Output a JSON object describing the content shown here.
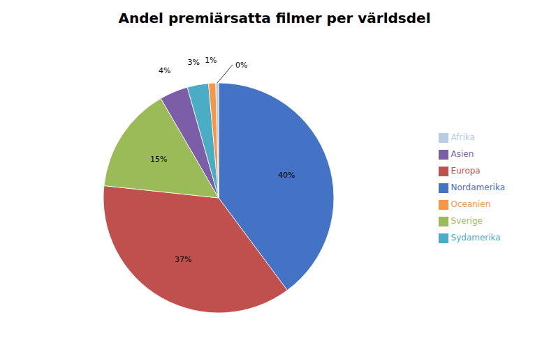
{
  "chart_data": {
    "type": "pie",
    "title": "Andel premiärsatta filmer per världsdel",
    "categories": [
      "Nordamerika",
      "Europa",
      "Sverige",
      "Asien",
      "Sydamerika",
      "Oceanien",
      "Afrika"
    ],
    "values": [
      40,
      37,
      15,
      4,
      3,
      1,
      0.4
    ],
    "value_labels": [
      "40%",
      "37%",
      "15%",
      "4%",
      "3%",
      "1%",
      "0%"
    ],
    "colors": [
      "#4472C4",
      "#C0504D",
      "#9BBB59",
      "#7B5EA7",
      "#4BACC6",
      "#F79646",
      "#B8CCE4"
    ],
    "data_labels": true,
    "legend": "right"
  }
}
